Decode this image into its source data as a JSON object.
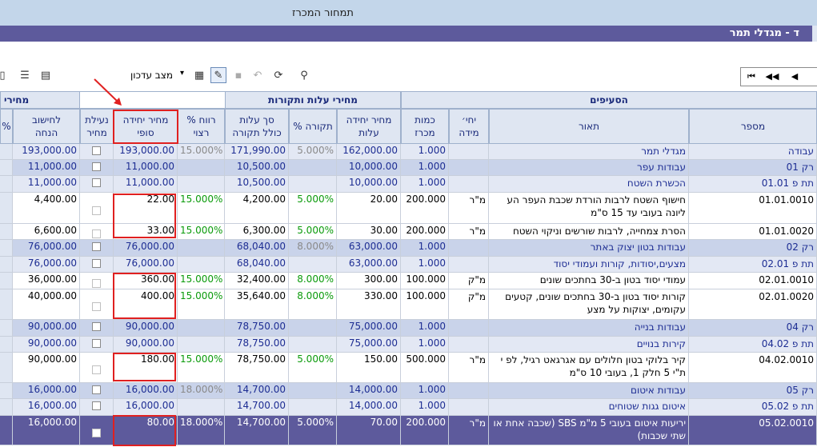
{
  "window": {
    "title": "תמחור המכרז"
  },
  "project_band": {
    "title": "ד - מגדלי תמר"
  },
  "toolbar": {
    "state_label": "מצב עדכון",
    "icons": [
      "new-doc-icon",
      "list-icon",
      "print-preview-icon",
      "grid-view-icon",
      "copy-doc-icon",
      "active-edit-icon",
      "save-icon",
      "undo-icon",
      "refresh-icon",
      "binoculars-icon"
    ]
  },
  "nav": {
    "first": "⏮",
    "prev_page": "◀◀",
    "prev": "◀"
  },
  "groups": {
    "items": "הסעיפים",
    "cost": "מחירי עלות ותקורות",
    "sale": "מחירי"
  },
  "columns": {
    "number": "מספר",
    "desc": "תאור",
    "unit_line1": "יחי׳",
    "unit_line2": "מידה",
    "qty_line1": "כמות",
    "qty_line2": "מכרז",
    "cost_price_line1": "מחיר יחידה",
    "cost_price_line2": "עלות",
    "overhead_pct": "% תקורה",
    "cost_total_line1": "סך עלות",
    "cost_total_line2": "כולל תקורה",
    "profit_line1": "% רווח",
    "profit_line2": "רצוי",
    "final_price_line1": "מחיר יחידה",
    "final_price_line2": "סופי",
    "lock_line1": "נעילת",
    "lock_line2": "מחיר",
    "calc_line1": "לחישוב",
    "calc_line2": "הנחה",
    "edge_pct": "%"
  },
  "rows": [
    {
      "type": "group",
      "num": "עבודה",
      "desc": "מגדלי תמר",
      "qty": "1.000",
      "cost": "162,000.00",
      "ovh": "5.000%",
      "tot": "171,990.00",
      "prof": "15.000%",
      "final": "193,000.00",
      "calc": "193,000.00"
    },
    {
      "type": "section",
      "num": "רק 01",
      "desc": "עבודות עפר",
      "qty": "1.000",
      "cost": "10,000.00",
      "ovh": "",
      "tot": "10,500.00",
      "prof": "",
      "final": "11,000.00",
      "calc": "11,000.00"
    },
    {
      "type": "sub",
      "num": "תת פ 01.01",
      "desc": "הכשרת השטח",
      "qty": "1.000",
      "cost": "10,000.00",
      "ovh": "",
      "tot": "10,500.00",
      "prof": "",
      "final": "11,000.00",
      "calc": "11,000.00"
    },
    {
      "type": "item",
      "num": "01.01.0010",
      "desc": "חישוף השטח לרבות הורדת שכבת העפר הע ליונה בעובי עד 15 ס\"מ",
      "unit": "מ\"ר",
      "qty": "200.000",
      "cost": "20.00",
      "ovh": "5.000%",
      "tot": "4,200.00",
      "prof": "15.000%",
      "final": "22.00",
      "calc": "4,400.00"
    },
    {
      "type": "item",
      "num": "01.01.0020",
      "desc": "הסרת צמחייה, לרבות שורשים וניקוי השטח",
      "unit": "מ\"ר",
      "qty": "200.000",
      "cost": "30.00",
      "ovh": "5.000%",
      "tot": "6,300.00",
      "prof": "15.000%",
      "final": "33.00",
      "calc": "6,600.00"
    },
    {
      "type": "section",
      "num": "רק 02",
      "desc": "עבודות בטון יצוק באתר",
      "qty": "1.000",
      "cost": "63,000.00",
      "ovh": "8.000%",
      "tot": "68,040.00",
      "prof": "",
      "final": "76,000.00",
      "calc": "76,000.00"
    },
    {
      "type": "sub",
      "num": "תת פ 02.01",
      "desc": "מצעים,יסודות, קורות ועמודי יסוד",
      "qty": "1.000",
      "cost": "63,000.00",
      "ovh": "",
      "tot": "68,040.00",
      "prof": "",
      "final": "76,000.00",
      "calc": "76,000.00"
    },
    {
      "type": "item",
      "num": "02.01.0010",
      "desc": "עמודי יסוד בטון ב-30 בחתכים שונים",
      "unit": "מ\"ק",
      "qty": "100.000",
      "cost": "300.00",
      "ovh": "8.000%",
      "tot": "32,400.00",
      "prof": "15.000%",
      "final": "360.00",
      "calc": "36,000.00"
    },
    {
      "type": "item",
      "num": "02.01.0020",
      "desc": "קורות יסוד בטון ב-30 בחתכים שונים, קטעים עקומים, יצוקות על מצע",
      "unit": "מ\"ק",
      "qty": "100.000",
      "cost": "330.00",
      "ovh": "8.000%",
      "tot": "35,640.00",
      "prof": "15.000%",
      "final": "400.00",
      "calc": "40,000.00"
    },
    {
      "type": "section",
      "num": "רק 04",
      "desc": "עבודות בנייה",
      "qty": "1.000",
      "cost": "75,000.00",
      "ovh": "",
      "tot": "78,750.00",
      "prof": "",
      "final": "90,000.00",
      "calc": "90,000.00"
    },
    {
      "type": "sub",
      "num": "תת פ 04.02",
      "desc": "קירות בנויים",
      "qty": "1.000",
      "cost": "75,000.00",
      "ovh": "",
      "tot": "78,750.00",
      "prof": "",
      "final": "90,000.00",
      "calc": "90,000.00"
    },
    {
      "type": "item",
      "num": "04.02.0010",
      "desc": "קיר בלוקי בטון חלולים עם אגרגאט רגיל, לפ י ת\"י 5 חלק 1, בעובי 10 ס\"מ",
      "unit": "מ\"ר",
      "qty": "500.000",
      "cost": "150.00",
      "ovh": "5.000%",
      "tot": "78,750.00",
      "prof": "15.000%",
      "final": "180.00",
      "calc": "90,000.00"
    },
    {
      "type": "section",
      "num": "רק 05",
      "desc": "עבודות איטום",
      "qty": "1.000",
      "cost": "14,000.00",
      "ovh": "",
      "tot": "14,700.00",
      "prof": "18.000%",
      "final": "16,000.00",
      "calc": "16,000.00"
    },
    {
      "type": "sub",
      "num": "תת פ 05.02",
      "desc": "איטום גגות שטוחים",
      "qty": "1.000",
      "cost": "14,000.00",
      "ovh": "",
      "tot": "14,700.00",
      "prof": "",
      "final": "16,000.00",
      "calc": "16,000.00"
    },
    {
      "type": "selected",
      "num": "05.02.0010",
      "desc": "יריעות איטום בעובי 5 מ\"מ SBS (שכבה אחת או שתי שכבות)",
      "unit": "מ\"ר",
      "qty": "200.000",
      "cost": "70.00",
      "ovh": "5.000%",
      "tot": "14,700.00",
      "prof": "18.000%",
      "final": "80.00",
      "calc": "16,000.00"
    }
  ]
}
